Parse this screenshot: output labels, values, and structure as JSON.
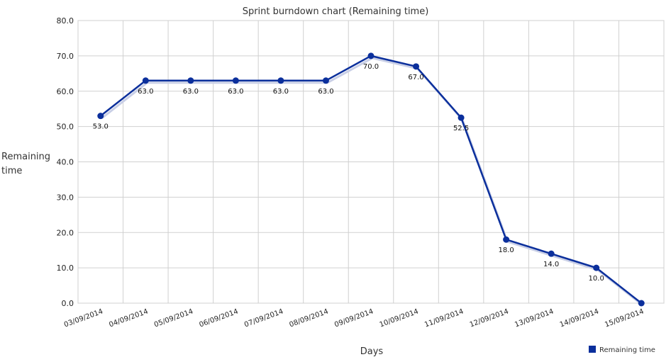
{
  "chart_data": {
    "type": "line",
    "title": "Sprint burndown chart (Remaining time)",
    "xlabel": "Days",
    "ylabel_lines": [
      "Remaining",
      "time"
    ],
    "categories": [
      "03/09/2014",
      "04/09/2014",
      "05/09/2014",
      "06/09/2014",
      "07/09/2014",
      "08/09/2014",
      "09/09/2014",
      "10/09/2014",
      "11/09/2014",
      "12/09/2014",
      "13/09/2014",
      "14/09/2014",
      "15/09/2014"
    ],
    "ylim": [
      0,
      80
    ],
    "yticks": [
      "0.0",
      "10.0",
      "20.0",
      "30.0",
      "40.0",
      "50.0",
      "60.0",
      "70.0",
      "80.0"
    ],
    "grid": true,
    "legend_position": "bottom-right",
    "series": [
      {
        "name": "Remaining time",
        "color": "#0b2f9c",
        "values": [
          53.0,
          63.0,
          63.0,
          63.0,
          63.0,
          63.0,
          70.0,
          67.0,
          52.5,
          18.0,
          14.0,
          10.0,
          0.0
        ],
        "labels": [
          "53.0",
          "63.0",
          "63.0",
          "63.0",
          "63.0",
          "63.0",
          "70.0",
          "67.0",
          "52.5",
          "18.0",
          "14.0",
          "10.0",
          ""
        ]
      }
    ]
  }
}
